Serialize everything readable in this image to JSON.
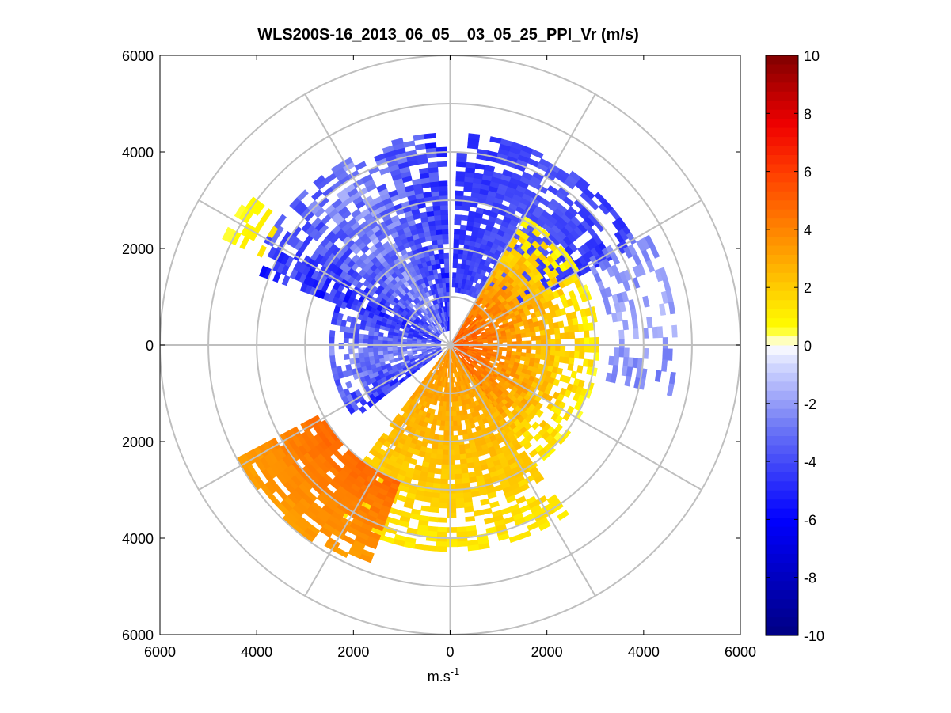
{
  "chart_data": {
    "type": "heatmap",
    "projection": "polar-ppi",
    "title": "WLS200S-16_2013_06_05__03_05_25_PPI_Vr (m/s)",
    "xlabel": "m.s-1",
    "xlabel_base": "m.s",
    "xlabel_sup": "-1",
    "ylabel": "",
    "xlim": [
      -6000,
      6000
    ],
    "ylim": [
      -6000,
      6000
    ],
    "x_ticks": [
      -6000,
      -4000,
      -2000,
      0,
      2000,
      4000,
      6000
    ],
    "x_tick_labels": [
      "6000",
      "4000",
      "2000",
      "0",
      "2000",
      "4000",
      "6000"
    ],
    "y_ticks": [
      6000,
      4000,
      2000,
      0,
      -2000,
      -4000,
      -6000
    ],
    "y_tick_labels": [
      "6000",
      "4000",
      "2000",
      "0",
      "2000",
      "4000",
      "6000"
    ],
    "range_rings_m": [
      1000,
      2000,
      3000,
      4000,
      5000,
      6000
    ],
    "spokes_deg": [
      0,
      30,
      60,
      90,
      120,
      150,
      180,
      210,
      240,
      270,
      300,
      330
    ],
    "colorbar": {
      "min": -10,
      "max": 10,
      "ticks": [
        10,
        8,
        6,
        4,
        2,
        0,
        -2,
        -4,
        -6,
        -8,
        -10
      ],
      "tick_labels": [
        "10",
        "8",
        "6",
        "4",
        "2",
        "0",
        "-2",
        "-4",
        "-6",
        "-8",
        "-10"
      ],
      "colormap": "blue-white-yellow-red (jet-like diverging)"
    },
    "sectors": [
      {
        "name": "north-east negative lobe",
        "az_from": 2,
        "az_to": 60,
        "r_from": 1100,
        "r_to": 4400,
        "vr_range": [
          -5.5,
          -3.0
        ],
        "sign": "negative"
      },
      {
        "name": "north-west negative lobe",
        "az_from": 290,
        "az_to": 358,
        "r_from": 300,
        "r_to": 4400,
        "vr_range": [
          -6.5,
          -1.0
        ],
        "sign": "negative"
      },
      {
        "name": "west negative lobe",
        "az_from": 232,
        "az_to": 290,
        "r_from": 200,
        "r_to": 2500,
        "vr_range": [
          -6.0,
          -1.0
        ],
        "sign": "negative"
      },
      {
        "name": "east sparse negative returns",
        "az_from": 58,
        "az_to": 102,
        "r_from": 3300,
        "r_to": 4700,
        "vr_range": [
          -3.5,
          -1.0
        ],
        "sign": "negative"
      },
      {
        "name": "east positive lobe",
        "az_from": 30,
        "az_to": 145,
        "r_from": 0,
        "r_to": 3000,
        "vr_range": [
          0.5,
          6.0
        ],
        "sign": "positive"
      },
      {
        "name": "south positive lobe",
        "az_from": 145,
        "az_to": 215,
        "r_from": 0,
        "r_to": 4200,
        "vr_range": [
          1.0,
          4.0
        ],
        "sign": "positive"
      },
      {
        "name": "south-west positive lobe",
        "az_from": 200,
        "az_to": 240,
        "r_from": 3000,
        "r_to": 5000,
        "vr_range": [
          3.0,
          5.0
        ],
        "sign": "positive"
      },
      {
        "name": "west-north-west near-zero returns",
        "az_from": 295,
        "az_to": 305,
        "r_from": 4300,
        "r_to": 5200,
        "vr_range": [
          0.3,
          1.5
        ],
        "sign": "positive"
      }
    ]
  }
}
